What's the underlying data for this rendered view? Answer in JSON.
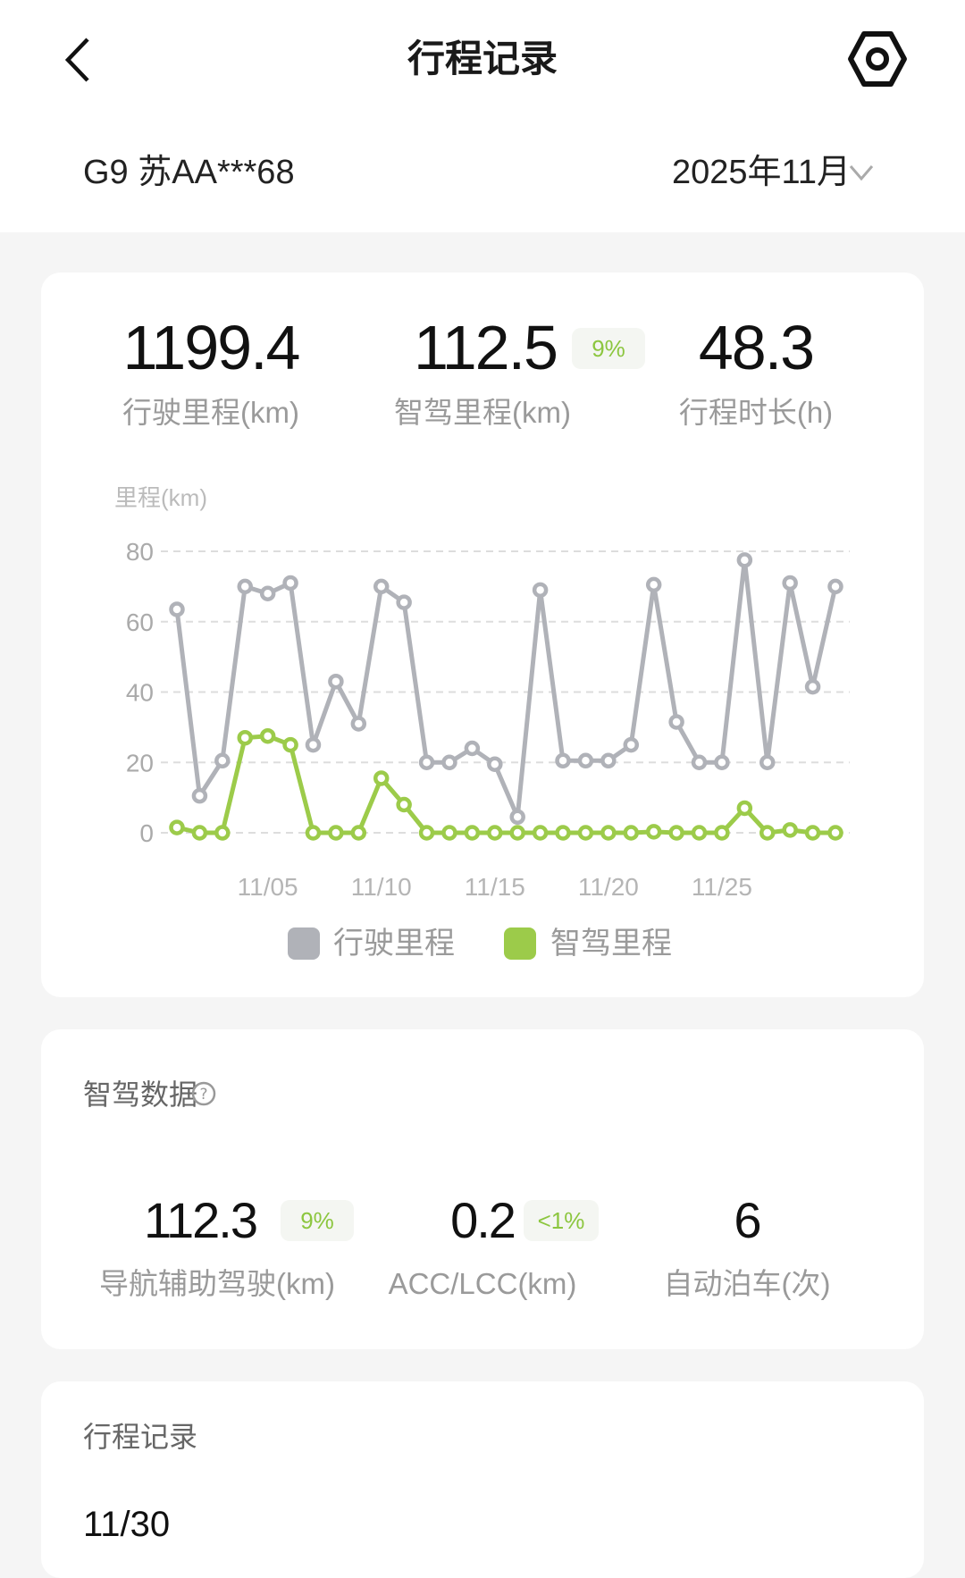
{
  "header": {
    "title": "行程记录",
    "back_icon": "chevron-left-icon",
    "settings_icon": "hexagon-settings-icon"
  },
  "vehicle": {
    "name": "G9 苏AA***68",
    "month": "2025年11月"
  },
  "summary": {
    "drive_distance": {
      "value": "1199.4",
      "label": "行驶里程(km)"
    },
    "smart_distance": {
      "value": "112.5",
      "badge": "9%",
      "label": "智驾里程(km)"
    },
    "duration": {
      "value": "48.3",
      "label": "行程时长(h)"
    }
  },
  "chart_data": {
    "type": "line",
    "ylabel": "里程(km)",
    "ylim": [
      0,
      80
    ],
    "yticks": [
      "0",
      "20",
      "40",
      "60",
      "80"
    ],
    "grid": true,
    "x": [
      "11/01",
      "11/02",
      "11/03",
      "11/04",
      "11/05",
      "11/06",
      "11/07",
      "11/08",
      "11/09",
      "11/10",
      "11/11",
      "11/12",
      "11/13",
      "11/14",
      "11/15",
      "11/16",
      "11/17",
      "11/18",
      "11/19",
      "11/20",
      "11/21",
      "11/22",
      "11/23",
      "11/24",
      "11/25",
      "11/26",
      "11/27",
      "11/28",
      "11/29",
      "11/30"
    ],
    "xtick_labels": [
      "11/05",
      "11/10",
      "11/15",
      "11/20",
      "11/25"
    ],
    "legend_position": "bottom",
    "series": [
      {
        "name": "行驶里程",
        "color": "#b0b2b8",
        "values": [
          63.5,
          10.5,
          20.5,
          70,
          68,
          71,
          25,
          43,
          31,
          70,
          65.5,
          20,
          20,
          24,
          19.5,
          4.5,
          69,
          20.5,
          20.5,
          20.5,
          25,
          70.5,
          31.5,
          20,
          20,
          77.5,
          20,
          71,
          41.5,
          70
        ]
      },
      {
        "name": "智驾里程",
        "color": "#9ccb4a",
        "values": [
          1.5,
          0,
          0,
          27,
          27.5,
          25,
          0,
          0,
          0,
          15.5,
          8,
          0,
          0,
          0,
          0,
          0,
          0,
          0,
          0,
          0,
          0,
          0.3,
          0,
          0,
          0,
          7,
          0,
          0.8,
          0,
          0
        ]
      }
    ]
  },
  "smart_data": {
    "title": "智驾数据",
    "help_icon": "question-circle-icon",
    "items": [
      {
        "value": "112.3",
        "badge": "9%",
        "label": "导航辅助驾驶(km)"
      },
      {
        "value": "0.2",
        "badge": "<1%",
        "label": "ACC/LCC(km)"
      },
      {
        "value": "6",
        "label": "自动泊车(次)"
      }
    ]
  },
  "trips": {
    "title": "行程记录",
    "first_date": "11/30"
  }
}
